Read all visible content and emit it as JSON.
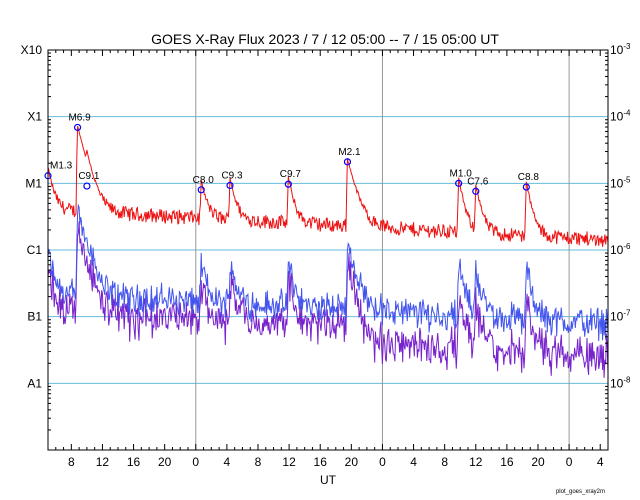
{
  "chart_data": {
    "type": "line",
    "title": "GOES X-Ray Flux   2023  /  7  /  12    05:00 --  7  /  15    05:00    UT",
    "xlabel": "UT",
    "footer": "plot_goes_xray2m",
    "x_ticks": [
      "8",
      "12",
      "16",
      "20",
      "0",
      "4",
      "8",
      "12",
      "16",
      "20",
      "0",
      "4",
      "8",
      "12",
      "16",
      "20",
      "0",
      "4"
    ],
    "y_class_labels": [
      "X10",
      "X1",
      "M1",
      "C1",
      "B1",
      "A1"
    ],
    "y_right_labels": [
      {
        "base": "10",
        "exp": "-3"
      },
      {
        "base": "10",
        "exp": "-4"
      },
      {
        "base": "10",
        "exp": "-5"
      },
      {
        "base": "10",
        "exp": "-6"
      },
      {
        "base": "10",
        "exp": "-7"
      },
      {
        "base": "10",
        "exp": "-8"
      }
    ],
    "y_scale": "log",
    "y_range": [
      "1e-9",
      "1e-3"
    ],
    "x_range_hours_since_start": [
      0,
      72
    ],
    "colors": {
      "long": "#ee1111",
      "short_primary": "#4455ee",
      "short_secondary": "#7722cc",
      "grid": "#66bbdd",
      "day_line": "#999999",
      "flare_marker": "#0000ff"
    },
    "flares": [
      {
        "label": "M1.3",
        "t": 0.0,
        "flux": 1.3e-05
      },
      {
        "label": "M6.9",
        "t": 3.8,
        "flux": 6.9e-05
      },
      {
        "label": "C9.1",
        "t": 5.0,
        "flux": 9.1e-06
      },
      {
        "label": "C8.0",
        "t": 19.7,
        "flux": 8e-06
      },
      {
        "label": "C9.3",
        "t": 23.4,
        "flux": 9.3e-06
      },
      {
        "label": "C9.7",
        "t": 30.9,
        "flux": 9.7e-06
      },
      {
        "label": "M2.1",
        "t": 38.5,
        "flux": 2.1e-05
      },
      {
        "label": "M1.0",
        "t": 52.8,
        "flux": 1e-05
      },
      {
        "label": "C7.6",
        "t": 55.0,
        "flux": 7.6e-06
      },
      {
        "label": "C8.8",
        "t": 61.5,
        "flux": 8.8e-06
      }
    ]
  }
}
